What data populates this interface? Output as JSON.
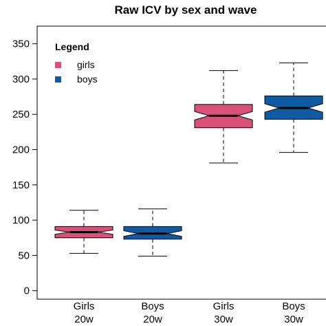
{
  "chart_data": {
    "type": "boxplot",
    "title": "Raw ICV by sex and wave",
    "xlabel": "",
    "ylabel": "",
    "ylim": [
      -12,
      375
    ],
    "yticks": [
      0,
      50,
      100,
      150,
      200,
      250,
      300,
      350
    ],
    "notched": true,
    "grid": false,
    "legend": {
      "title": "Legend",
      "placement": "top-left",
      "entries": [
        {
          "label": "girls",
          "color": "#d9507b"
        },
        {
          "label": "boys",
          "color": "#0f5aa0"
        }
      ]
    },
    "boxes": [
      {
        "label_line1": "Girls",
        "label_line2": "20w",
        "group": "girls",
        "color": "#d9507b",
        "whisker_low": 53,
        "q1": 75,
        "median": 83,
        "q3": 91,
        "whisker_high": 114,
        "notch_low": 80,
        "notch_high": 86
      },
      {
        "label_line1": "Boys",
        "label_line2": "20w",
        "group": "boys",
        "color": "#0f5aa0",
        "whisker_low": 49,
        "q1": 73,
        "median": 81,
        "q3": 91,
        "whisker_high": 116,
        "notch_low": 77,
        "notch_high": 85
      },
      {
        "label_line1": "Girls",
        "label_line2": "30w",
        "group": "girls",
        "color": "#d9507b",
        "whisker_low": 181,
        "q1": 231,
        "median": 248,
        "q3": 264,
        "whisker_high": 312,
        "notch_low": 242,
        "notch_high": 254
      },
      {
        "label_line1": "Boys",
        "label_line2": "30w",
        "group": "boys",
        "color": "#0f5aa0",
        "whisker_low": 196,
        "q1": 243,
        "median": 259,
        "q3": 276,
        "whisker_high": 323,
        "notch_low": 253,
        "notch_high": 265
      }
    ]
  }
}
